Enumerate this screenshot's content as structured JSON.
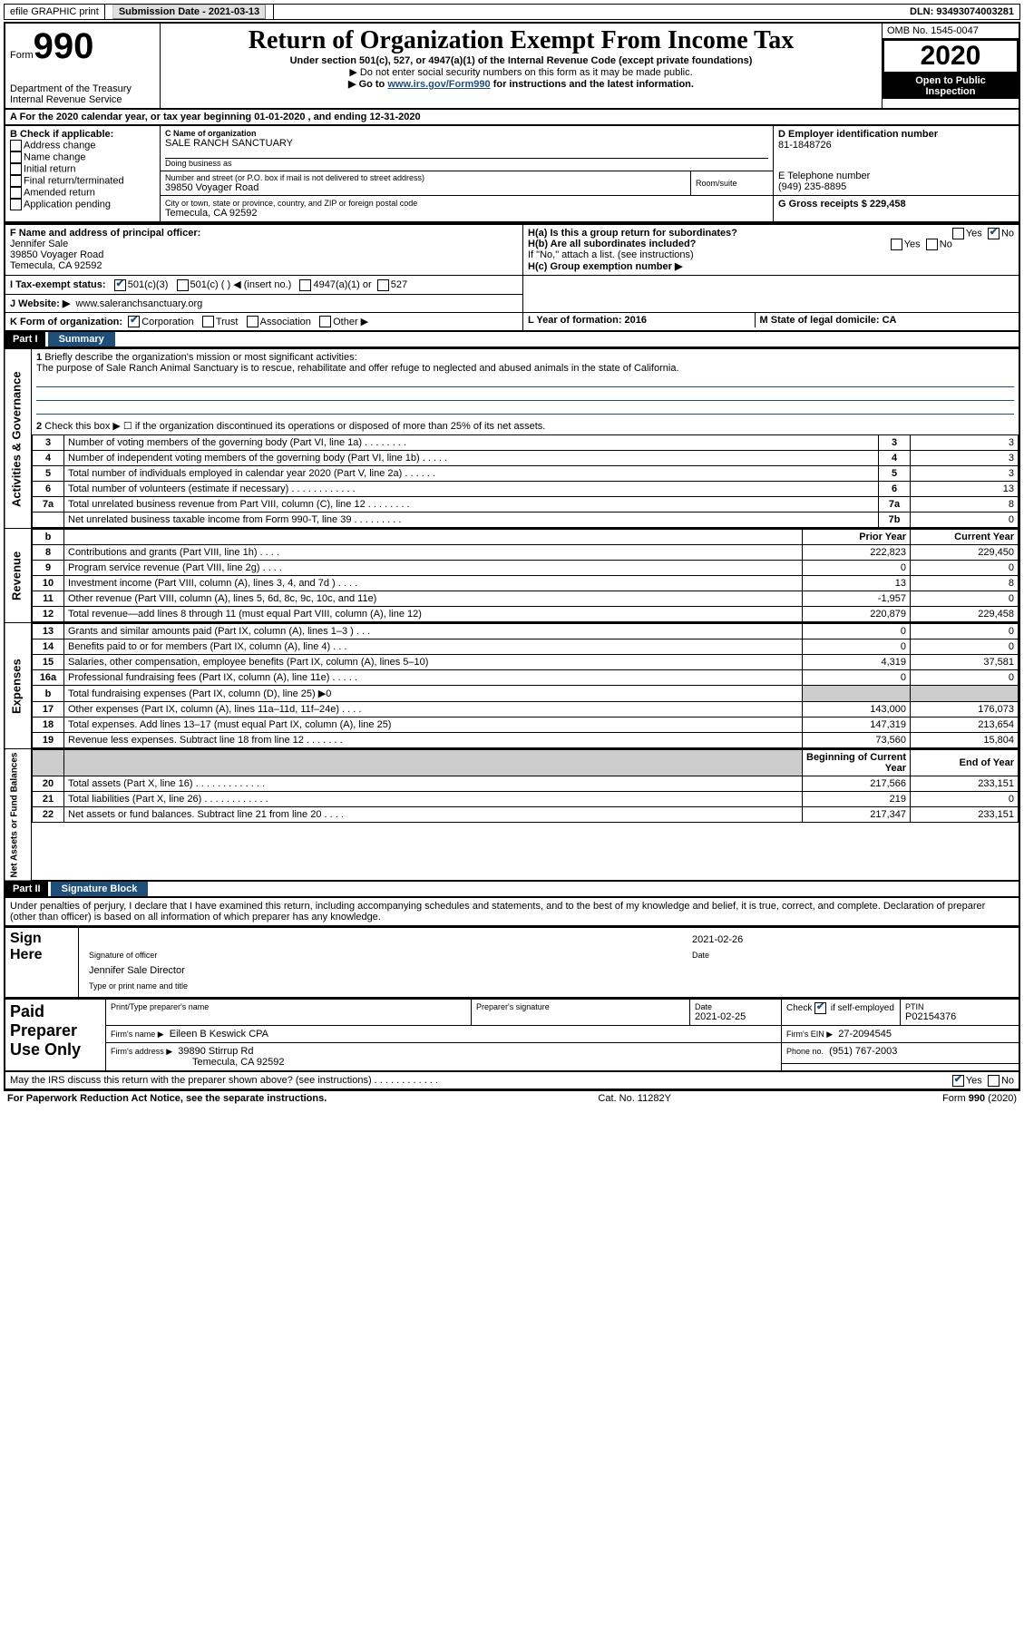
{
  "topbar": {
    "efile": "efile GRAPHIC print",
    "submission_label": "Submission Date - 2021-03-13",
    "dln": "DLN: 93493074003281"
  },
  "header": {
    "form_prefix": "Form",
    "form_no": "990",
    "dept1": "Department of the Treasury",
    "dept2": "Internal Revenue Service",
    "title": "Return of Organization Exempt From Income Tax",
    "subtitle": "Under section 501(c), 527, or 4947(a)(1) of the Internal Revenue Code (except private foundations)",
    "note1": "▶ Do not enter social security numbers on this form as it may be made public.",
    "note2_prefix": "▶ Go to ",
    "note2_link": "www.irs.gov/Form990",
    "note2_suffix": " for instructions and the latest information.",
    "omb": "OMB No. 1545-0047",
    "year": "2020",
    "inspect1": "Open to Public",
    "inspect2": "Inspection"
  },
  "lineA": "A For the 2020 calendar year, or tax year beginning 01-01-2020    , and ending 12-31-2020",
  "boxB": {
    "label": "B Check if applicable:",
    "o1": "Address change",
    "o2": "Name change",
    "o3": "Initial return",
    "o4": "Final return/terminated",
    "o5": "Amended return",
    "o6": "Application pending"
  },
  "boxC": {
    "name_label": "C Name of organization",
    "name": "SALE RANCH SANCTUARY",
    "dba_label": "Doing business as",
    "addr_label": "Number and street (or P.O. box if mail is not delivered to street address)",
    "room_label": "Room/suite",
    "addr": "39850 Voyager Road",
    "city_label": "City or town, state or province, country, and ZIP or foreign postal code",
    "city": "Temecula, CA  92592"
  },
  "boxD": {
    "label": "D Employer identification number",
    "val": "81-1848726"
  },
  "boxE": {
    "label": "E Telephone number",
    "val": "(949) 235-8895"
  },
  "boxG": {
    "label": "G Gross receipts $ 229,458"
  },
  "boxF": {
    "label": "F  Name and address of principal officer:",
    "l1": "Jennifer Sale",
    "l2": "39850 Voyager Road",
    "l3": "Temecula, CA  92592"
  },
  "boxH": {
    "a": "H(a)  Is this a group return for subordinates?",
    "b": "H(b)  Are all subordinates included?",
    "bnote": "If \"No,\" attach a list. (see instructions)",
    "c": "H(c)  Group exemption number ▶",
    "yes": "Yes",
    "no": "No"
  },
  "boxI": {
    "label": "I    Tax-exempt status:",
    "o1": "501(c)(3)",
    "o2": "501(c) (  ) ◀ (insert no.)",
    "o3": "4947(a)(1) or",
    "o4": "527"
  },
  "boxJ": {
    "label": "J    Website: ▶",
    "val": "www.saleranchsanctuary.org"
  },
  "boxK": {
    "label": "K Form of organization:",
    "o1": "Corporation",
    "o2": "Trust",
    "o3": "Association",
    "o4": "Other ▶"
  },
  "boxL": {
    "label": "L Year of formation: 2016"
  },
  "boxM": {
    "label": "M State of legal domicile: CA"
  },
  "part1": {
    "tab": "Part I",
    "title": "Summary",
    "vlabel_ag": "Activities & Governance",
    "vlabel_rev": "Revenue",
    "vlabel_exp": "Expenses",
    "vlabel_na": "Net Assets or Fund Balances",
    "l1": "Briefly describe the organization's mission or most significant activities:",
    "l1txt": "The purpose of Sale Ranch Animal Sanctuary is to rescue, rehabilitate and offer refuge to neglected and abused animals in the state of California.",
    "l2": "Check this box ▶ ☐  if the organization discontinued its operations or disposed of more than 25% of its net assets.",
    "rows_ag": [
      {
        "n": "3",
        "t": "Number of voting members of the governing body (Part VI, line 1a)  .    .    .    .    .    .    .    .",
        "box": "3",
        "v": "3"
      },
      {
        "n": "4",
        "t": "Number of independent voting members of the governing body (Part VI, line 1b)  .    .    .    .    .",
        "box": "4",
        "v": "3"
      },
      {
        "n": "5",
        "t": "Total number of individuals employed in calendar year 2020 (Part V, line 2a)  .    .    .    .    .    .",
        "box": "5",
        "v": "3"
      },
      {
        "n": "6",
        "t": "Total number of volunteers (estimate if necessary)    .    .    .    .    .    .    .    .    .    .    .    .",
        "box": "6",
        "v": "13"
      },
      {
        "n": "7a",
        "t": "Total unrelated business revenue from Part VIII, column (C), line 12   .    .    .    .    .    .    .    .",
        "box": "7a",
        "v": "8"
      },
      {
        "n": "",
        "t": "Net unrelated business taxable income from Form 990-T, line 39    .    .    .    .    .    .    .    .    .",
        "box": "7b",
        "v": "0"
      }
    ],
    "col_py": "Prior Year",
    "col_cy": "Current Year",
    "rows_rev": [
      {
        "n": "8",
        "t": "Contributions and grants (Part VIII, line 1h)   .    .    .    .",
        "py": "222,823",
        "cy": "229,450"
      },
      {
        "n": "9",
        "t": "Program service revenue (Part VIII, line 2g)   .    .    .    .",
        "py": "0",
        "cy": "0"
      },
      {
        "n": "10",
        "t": "Investment income (Part VIII, column (A), lines 3, 4, and 7d )    .    .    .    .",
        "py": "13",
        "cy": "8"
      },
      {
        "n": "11",
        "t": "Other revenue (Part VIII, column (A), lines 5, 6d, 8c, 9c, 10c, and 11e)",
        "py": "-1,957",
        "cy": "0"
      },
      {
        "n": "12",
        "t": "Total revenue—add lines 8 through 11 (must equal Part VIII, column (A), line 12)",
        "py": "220,879",
        "cy": "229,458"
      }
    ],
    "rows_exp": [
      {
        "n": "13",
        "t": "Grants and similar amounts paid (Part IX, column (A), lines 1–3 )   .    .    .",
        "py": "0",
        "cy": "0"
      },
      {
        "n": "14",
        "t": "Benefits paid to or for members (Part IX, column (A), line 4)   .    .    .",
        "py": "0",
        "cy": "0"
      },
      {
        "n": "15",
        "t": "Salaries, other compensation, employee benefits (Part IX, column (A), lines 5–10)",
        "py": "4,319",
        "cy": "37,581"
      },
      {
        "n": "16a",
        "t": "Professional fundraising fees (Part IX, column (A), line 11e)   .    .    .    .    .",
        "py": "0",
        "cy": "0"
      },
      {
        "n": "b",
        "t": "Total fundraising expenses (Part IX, column (D), line 25) ▶0",
        "py": "",
        "cy": "",
        "shade": true
      },
      {
        "n": "17",
        "t": "Other expenses (Part IX, column (A), lines 11a–11d, 11f–24e)   .    .    .    .",
        "py": "143,000",
        "cy": "176,073"
      },
      {
        "n": "18",
        "t": "Total expenses. Add lines 13–17 (must equal Part IX, column (A), line 25)",
        "py": "147,319",
        "cy": "213,654"
      },
      {
        "n": "19",
        "t": "Revenue less expenses. Subtract line 18 from line 12 .    .    .    .    .    .    .",
        "py": "73,560",
        "cy": "15,804"
      }
    ],
    "col_bcy": "Beginning of Current Year",
    "col_eoy": "End of Year",
    "rows_na": [
      {
        "n": "20",
        "t": "Total assets (Part X, line 16)  .    .    .    .    .    .    .    .    .    .    .    .    .",
        "py": "217,566",
        "cy": "233,151"
      },
      {
        "n": "21",
        "t": "Total liabilities (Part X, line 26)  .    .    .    .    .    .    .    .    .    .    .    .",
        "py": "219",
        "cy": "0"
      },
      {
        "n": "22",
        "t": "Net assets or fund balances. Subtract line 21 from line 20    .    .    .    .",
        "py": "217,347",
        "cy": "233,151"
      }
    ]
  },
  "part2": {
    "tab": "Part II",
    "title": "Signature Block",
    "decl": "Under penalties of perjury, I declare that I have examined this return, including accompanying schedules and statements, and to the best of my knowledge and belief, it is true, correct, and complete. Declaration of preparer (other than officer) is based on all information of which preparer has any knowledge.",
    "sign_here": "Sign Here",
    "sig_officer": "Signature of officer",
    "sig_date": "2021-02-26",
    "sig_date_label": "Date",
    "officer_name": "Jennifer Sale  Director",
    "officer_name_label": "Type or print name and title",
    "paid": "Paid Preparer Use Only",
    "p_name_label": "Print/Type preparer's name",
    "p_sig_label": "Preparer's signature",
    "p_date_label": "Date",
    "p_date": "2021-02-25",
    "p_check": "Check ☑ if self-employed",
    "p_ptin_label": "PTIN",
    "p_ptin": "P02154376",
    "firm_name_label": "Firm's name     ▶",
    "firm_name": "Eileen B Keswick CPA",
    "firm_ein_label": "Firm's EIN ▶",
    "firm_ein": "27-2094545",
    "firm_addr_label": "Firm's address ▶",
    "firm_addr1": "39890 Stirrup Rd",
    "firm_addr2": "Temecula, CA  92592",
    "firm_phone_label": "Phone no.",
    "firm_phone": "(951) 767-2003",
    "discuss": "May the IRS discuss this return with the preparer shown above? (see instructions)   .    .    .    .    .    .    .    .    .    .    .    .",
    "yes": "Yes",
    "no": "No"
  },
  "footer": {
    "left": "For Paperwork Reduction Act Notice, see the separate instructions.",
    "mid": "Cat. No. 11282Y",
    "right": "Form 990 (2020)"
  }
}
